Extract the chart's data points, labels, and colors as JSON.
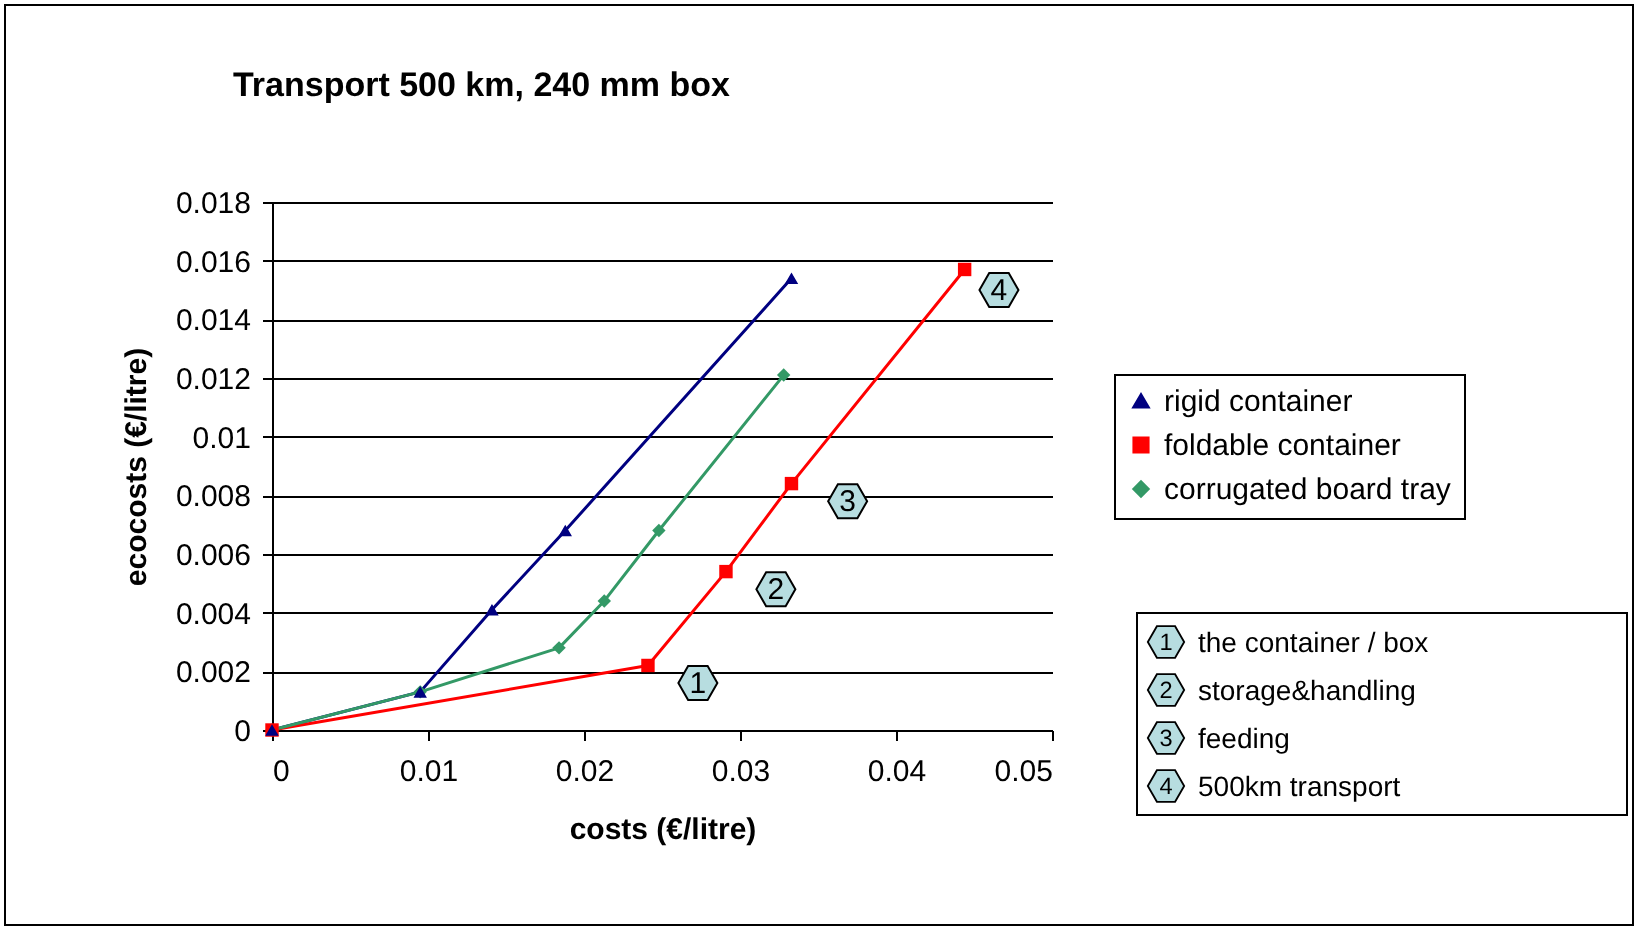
{
  "chart_data": {
    "type": "line",
    "title": "Transport 500 km, 240 mm box",
    "xlabel": "costs (€/litre)",
    "ylabel": "ecocosts (€/litre)",
    "xlim": [
      0,
      0.05
    ],
    "xticks": [
      0,
      0.01,
      0.02,
      0.03,
      0.04,
      0.05
    ],
    "ylim": [
      0,
      0.018
    ],
    "yticks": [
      0,
      0.002,
      0.004,
      0.006,
      0.008,
      0.01,
      0.012,
      0.014,
      0.016,
      0.018
    ],
    "grid": "y",
    "legend": "right",
    "series": [
      {
        "name": "rigid container",
        "color": "#000080",
        "marker": "triangle",
        "x": [
          0,
          0.0095,
          0.0141,
          0.0188,
          0.0333
        ],
        "values": [
          0,
          0.0013,
          0.0041,
          0.0068,
          0.0154
        ]
      },
      {
        "name": "foldable container",
        "color": "#ff0000",
        "marker": "square",
        "x": [
          0,
          0.0241,
          0.0291,
          0.0333,
          0.0444
        ],
        "values": [
          0,
          0.0022,
          0.0054,
          0.0084,
          0.0157
        ]
      },
      {
        "name": "corrugated board tray",
        "color": "#339966",
        "marker": "diamond",
        "x": [
          0,
          0.0095,
          0.0184,
          0.0213,
          0.0248,
          0.0328
        ],
        "values": [
          0,
          0.0013,
          0.0028,
          0.0044,
          0.0068,
          0.0121
        ]
      }
    ],
    "annotations": [
      {
        "text": "1",
        "x": 0.0273,
        "y": 0.0016
      },
      {
        "text": "2",
        "x": 0.0323,
        "y": 0.0048
      },
      {
        "text": "3",
        "x": 0.0369,
        "y": 0.0078
      },
      {
        "text": "4",
        "x": 0.0466,
        "y": 0.015
      },
      "1 the container / box",
      "2 storage&handling",
      "3 feeding",
      "4 500km transport"
    ]
  }
}
